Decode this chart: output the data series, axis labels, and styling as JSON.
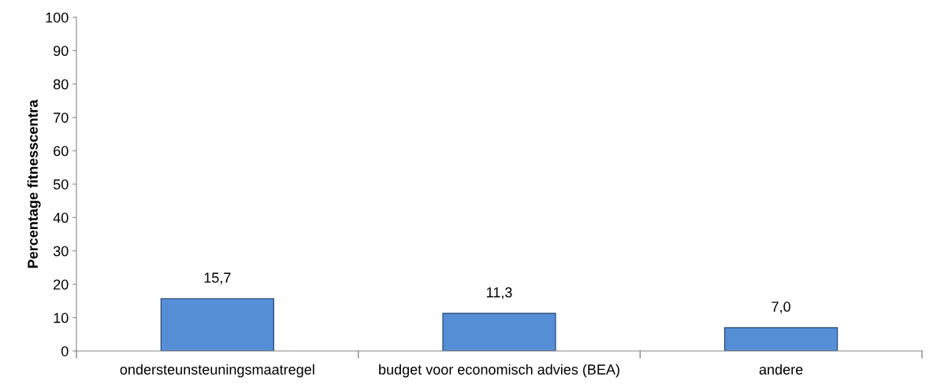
{
  "chart_data": {
    "type": "bar",
    "ylabel": "Percentage fitnesscentra",
    "categories": [
      "ondersteunsteuningsmaatregel",
      "budget voor economisch advies (BEA)",
      "andere"
    ],
    "values": [
      15.7,
      11.3,
      7.0
    ],
    "value_labels": [
      "15,7",
      "11,3",
      "7,0"
    ],
    "color": "#558ed5",
    "ylim": [
      0,
      100
    ],
    "yticks": [
      0,
      10,
      20,
      30,
      40,
      50,
      60,
      70,
      80,
      90,
      100
    ],
    "grid": false,
    "legend": false
  }
}
